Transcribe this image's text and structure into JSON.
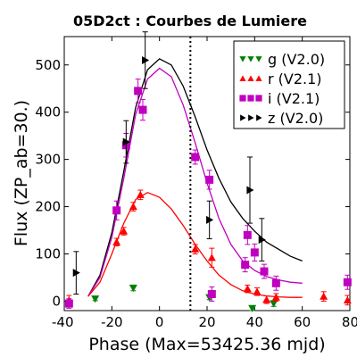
{
  "chart_data": {
    "type": "scatter",
    "title": "05D2ct : Courbes de Lumiere",
    "xlabel": "Phase (Max=53425.36 mjd)",
    "ylabel": "Flux (ZP_ab=30.)",
    "xlim": [
      -40,
      80
    ],
    "ylim": [
      -20,
      560
    ],
    "xticks": [
      -40,
      -20,
      0,
      20,
      40,
      60,
      80
    ],
    "yticks": [
      0,
      100,
      200,
      300,
      400,
      500
    ],
    "max_line_x": 13,
    "legend_position": "top-right",
    "series": [
      {
        "name": "g (V2.0)",
        "color": "#008000",
        "marker": "triangle-down",
        "points": [
          {
            "x": -27,
            "y": 5,
            "err": 4
          },
          {
            "x": -11,
            "y": 28,
            "err": 6
          },
          {
            "x": 21,
            "y": 8,
            "err": 5
          },
          {
            "x": 39,
            "y": -15,
            "err": 5
          },
          {
            "x": 48,
            "y": -5,
            "err": 6
          }
        ]
      },
      {
        "name": "r (V2.1)",
        "color": "#ff0000",
        "marker": "triangle-up",
        "points": [
          {
            "x": -38,
            "y": 2,
            "err": 10
          },
          {
            "x": -18,
            "y": 125,
            "err": 8
          },
          {
            "x": -15,
            "y": 148,
            "err": 8
          },
          {
            "x": -11,
            "y": 200,
            "err": 9
          },
          {
            "x": -8,
            "y": 225,
            "err": 10
          },
          {
            "x": 15,
            "y": 110,
            "err": 10
          },
          {
            "x": 22,
            "y": 92,
            "err": 20
          },
          {
            "x": 37,
            "y": 26,
            "err": 8
          },
          {
            "x": 41,
            "y": 20,
            "err": 8
          },
          {
            "x": 45,
            "y": 3,
            "err": 8
          },
          {
            "x": 49,
            "y": 8,
            "err": 8
          },
          {
            "x": 69,
            "y": 10,
            "err": 10
          },
          {
            "x": 79,
            "y": 2,
            "err": 10
          }
        ]
      },
      {
        "name": "i (V2.1)",
        "color": "#bf00bf",
        "marker": "square",
        "points": [
          {
            "x": -38,
            "y": -5,
            "err": 10
          },
          {
            "x": -18,
            "y": 192,
            "err": 20
          },
          {
            "x": -14,
            "y": 330,
            "err": 25
          },
          {
            "x": -9,
            "y": 445,
            "err": 25
          },
          {
            "x": -7,
            "y": 405,
            "err": 22
          },
          {
            "x": 15,
            "y": 305,
            "err": 15
          },
          {
            "x": 21,
            "y": 257,
            "err": 20
          },
          {
            "x": 22,
            "y": 15,
            "err": 15
          },
          {
            "x": 36,
            "y": 77,
            "err": 15
          },
          {
            "x": 37,
            "y": 140,
            "err": 20
          },
          {
            "x": 40,
            "y": 103,
            "err": 18
          },
          {
            "x": 44,
            "y": 63,
            "err": 15
          },
          {
            "x": 49,
            "y": 38,
            "err": 15
          },
          {
            "x": 79,
            "y": 40,
            "err": 15
          }
        ]
      },
      {
        "name": "z (V2.0)",
        "color": "#000000",
        "marker": "triangle-right",
        "points": [
          {
            "x": -35,
            "y": 60,
            "err": 45
          },
          {
            "x": -14,
            "y": 337,
            "err": 45
          },
          {
            "x": -6,
            "y": 510,
            "err": 60
          },
          {
            "x": 21,
            "y": 172,
            "err": 40
          },
          {
            "x": 38,
            "y": 235,
            "err": 70
          },
          {
            "x": 43,
            "y": 130,
            "err": 45
          }
        ]
      }
    ],
    "fits": [
      {
        "color": "#000000",
        "points": [
          [
            -30,
            10
          ],
          [
            -25,
            55
          ],
          [
            -20,
            145
          ],
          [
            -15,
            275
          ],
          [
            -10,
            410
          ],
          [
            -5,
            490
          ],
          [
            0,
            513
          ],
          [
            5,
            500
          ],
          [
            10,
            455
          ],
          [
            15,
            390
          ],
          [
            20,
            320
          ],
          [
            25,
            260
          ],
          [
            30,
            210
          ],
          [
            35,
            175
          ],
          [
            40,
            148
          ],
          [
            45,
            125
          ],
          [
            50,
            110
          ],
          [
            55,
            95
          ],
          [
            60,
            85
          ]
        ]
      },
      {
        "color": "#bf00bf",
        "points": [
          [
            -30,
            10
          ],
          [
            -25,
            50
          ],
          [
            -20,
            135
          ],
          [
            -15,
            260
          ],
          [
            -10,
            395
          ],
          [
            -5,
            470
          ],
          [
            0,
            493
          ],
          [
            5,
            475
          ],
          [
            10,
            415
          ],
          [
            15,
            335
          ],
          [
            20,
            250
          ],
          [
            25,
            175
          ],
          [
            30,
            120
          ],
          [
            35,
            85
          ],
          [
            40,
            65
          ],
          [
            45,
            52
          ],
          [
            50,
            45
          ],
          [
            55,
            40
          ],
          [
            60,
            38
          ]
        ]
      },
      {
        "color": "#ff0000",
        "points": [
          [
            -30,
            10
          ],
          [
            -25,
            40
          ],
          [
            -20,
            100
          ],
          [
            -15,
            165
          ],
          [
            -10,
            215
          ],
          [
            -5,
            230
          ],
          [
            0,
            220
          ],
          [
            5,
            195
          ],
          [
            10,
            160
          ],
          [
            15,
            120
          ],
          [
            20,
            85
          ],
          [
            25,
            55
          ],
          [
            30,
            35
          ],
          [
            35,
            22
          ],
          [
            40,
            15
          ],
          [
            45,
            11
          ],
          [
            50,
            9
          ],
          [
            55,
            8
          ],
          [
            60,
            8
          ]
        ]
      }
    ]
  }
}
